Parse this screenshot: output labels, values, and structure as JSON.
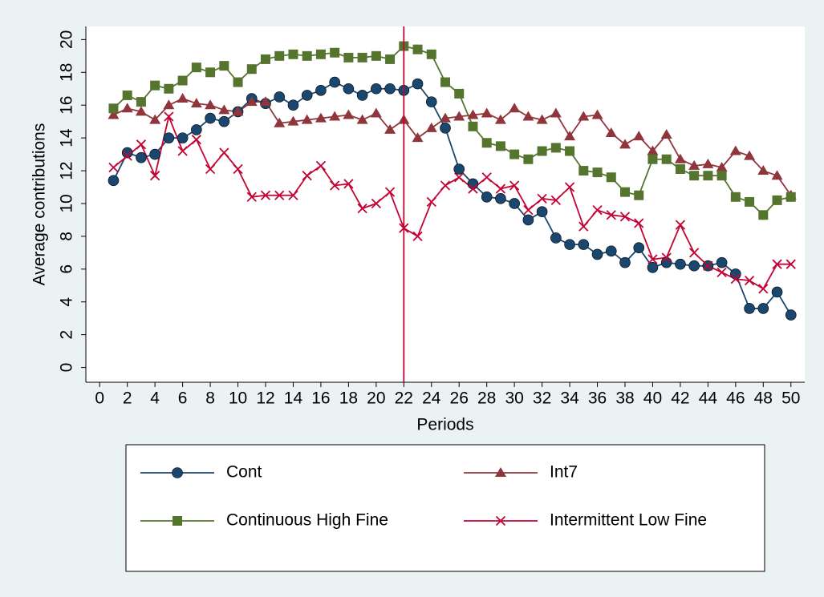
{
  "chart_data": {
    "type": "line",
    "y_label": "Average contributions",
    "x_label": "Periods",
    "x": [
      1,
      2,
      3,
      4,
      5,
      6,
      7,
      8,
      9,
      10,
      11,
      12,
      13,
      14,
      15,
      16,
      17,
      18,
      19,
      20,
      21,
      22,
      23,
      24,
      25,
      26,
      27,
      28,
      29,
      30,
      31,
      32,
      33,
      34,
      35,
      36,
      37,
      38,
      39,
      40,
      41,
      42,
      43,
      44,
      45,
      46,
      47,
      48,
      49,
      50
    ],
    "series": [
      {
        "name": "Cont",
        "color": "#1a476f",
        "marker": "circle",
        "values": [
          11.4,
          13.1,
          12.8,
          13.0,
          14.0,
          14.0,
          14.5,
          15.2,
          15.0,
          15.6,
          16.4,
          16.1,
          16.5,
          16.0,
          16.6,
          16.9,
          17.4,
          17.0,
          16.6,
          17.0,
          17.0,
          16.9,
          17.3,
          16.2,
          14.6,
          12.1,
          11.2,
          10.4,
          10.3,
          10.0,
          9.0,
          9.5,
          7.9,
          7.5,
          7.5,
          6.9,
          7.1,
          6.4,
          7.3,
          6.1,
          6.4,
          6.3,
          6.2,
          6.2,
          6.4,
          5.7,
          3.6,
          3.6,
          4.6,
          3.2
        ]
      },
      {
        "name": "Int7",
        "color": "#90353b",
        "marker": "triangle",
        "values": [
          15.4,
          15.8,
          15.6,
          15.1,
          16.0,
          16.4,
          16.1,
          16.0,
          15.7,
          15.6,
          16.2,
          16.2,
          14.9,
          15.0,
          15.1,
          15.2,
          15.3,
          15.4,
          15.1,
          15.5,
          14.5,
          15.1,
          14.0,
          14.6,
          15.2,
          15.3,
          15.4,
          15.5,
          15.1,
          15.8,
          15.3,
          15.1,
          15.5,
          14.1,
          15.3,
          15.4,
          14.3,
          13.6,
          14.1,
          13.2,
          14.2,
          12.7,
          12.3,
          12.4,
          12.2,
          13.2,
          12.9,
          12.0,
          11.7,
          10.5
        ]
      },
      {
        "name": "Continuous High Fine",
        "color": "#55752f",
        "marker": "square",
        "values": [
          15.8,
          16.6,
          16.2,
          17.2,
          17.0,
          17.5,
          18.3,
          18.0,
          18.4,
          17.4,
          18.2,
          18.8,
          19.0,
          19.1,
          19.0,
          19.1,
          19.2,
          18.9,
          18.9,
          19.0,
          18.8,
          19.6,
          19.4,
          19.1,
          17.4,
          16.7,
          14.7,
          13.7,
          13.5,
          13.0,
          12.7,
          13.2,
          13.4,
          13.2,
          12.0,
          11.9,
          11.6,
          10.7,
          10.5,
          12.7,
          12.7,
          12.1,
          11.7,
          11.7,
          11.7,
          10.4,
          10.1,
          9.3,
          10.2,
          10.4
        ]
      },
      {
        "name": "Intermittent Low Fine",
        "color": "#c10534",
        "marker": "x",
        "values": [
          12.2,
          12.9,
          13.6,
          11.7,
          15.3,
          13.2,
          13.9,
          12.1,
          13.1,
          12.1,
          10.4,
          10.5,
          10.5,
          10.5,
          11.7,
          12.3,
          11.1,
          11.2,
          9.7,
          10.0,
          10.7,
          8.5,
          8.0,
          10.1,
          11.1,
          11.6,
          10.9,
          11.6,
          10.9,
          11.1,
          9.6,
          10.3,
          10.2,
          11.0,
          8.6,
          9.6,
          9.3,
          9.2,
          8.8,
          6.6,
          6.7,
          8.7,
          7.0,
          6.2,
          5.8,
          5.4,
          5.3,
          4.8,
          6.3,
          6.3
        ]
      }
    ],
    "xlim": [
      -1,
      51
    ],
    "ylim": [
      -0.9,
      20.8
    ],
    "xticks": [
      0,
      2,
      4,
      6,
      8,
      10,
      12,
      14,
      16,
      18,
      20,
      22,
      24,
      26,
      28,
      30,
      32,
      34,
      36,
      38,
      40,
      42,
      44,
      46,
      48,
      50
    ],
    "yticks": [
      0,
      2,
      4,
      6,
      8,
      10,
      12,
      14,
      16,
      18,
      20
    ],
    "reference_line_x": 22,
    "reference_line_color": "#c10534",
    "legend": "bottom"
  }
}
